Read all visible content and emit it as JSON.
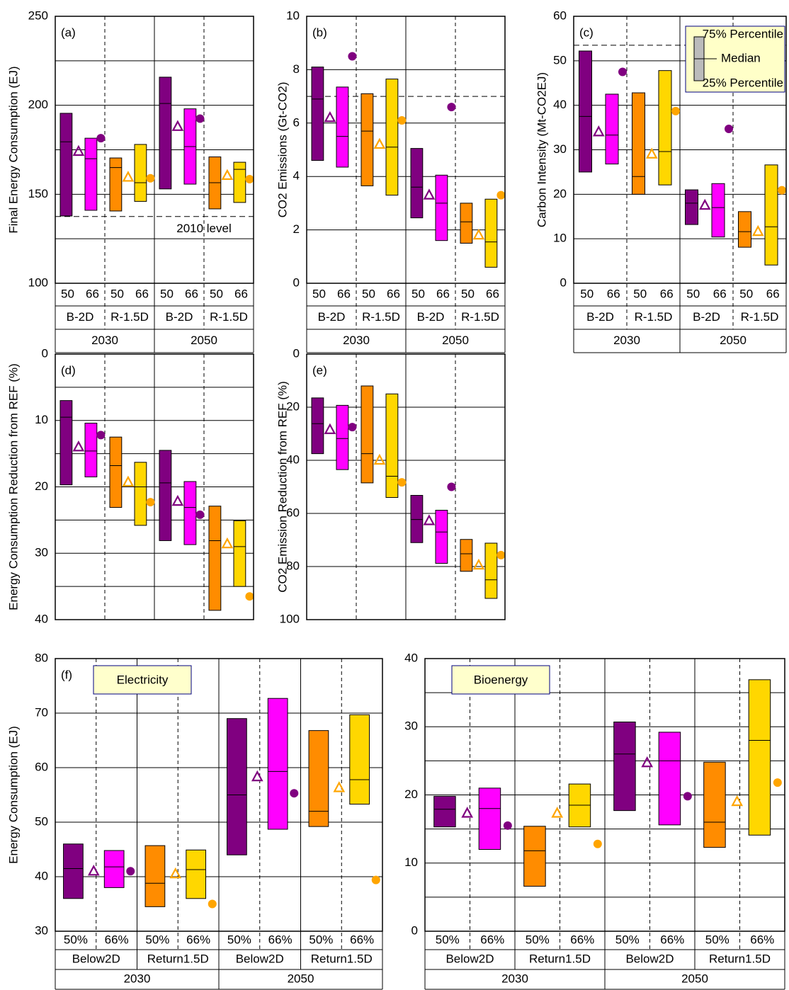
{
  "chart_data": [
    {
      "type": "box",
      "label": "(a)",
      "ylabel": "Final Energy Consumption (EJ)",
      "ylim": [
        100,
        250
      ],
      "yticks": [
        100,
        150,
        200,
        250
      ],
      "ygrid": [
        125,
        175,
        225
      ],
      "grid": true,
      "dashed_between": "scenarios",
      "size_labels": [
        "50",
        "66"
      ],
      "scenarios": [
        "B-2D",
        "R-1.5D"
      ],
      "periods": [
        "2030",
        "2050"
      ],
      "series": [
        {
          "color": "#800080",
          "median_color": "#ffa500",
          "q1": [
            137.8,
            153
          ],
          "median": [
            179.5,
            201
          ],
          "q3": [
            195.5,
            215.8
          ]
        },
        {
          "color": "#ff00ff",
          "median_color": "#000000",
          "q1": [
            141,
            155.7
          ],
          "median": [
            170,
            176.8
          ],
          "q3": [
            181.5,
            198
          ]
        },
        {
          "color": "#ff8c00",
          "median_color": "#000000",
          "q1": [
            140.6,
            141.8
          ],
          "median": [
            165,
            156.5
          ],
          "q3": [
            170.4,
            171
          ]
        },
        {
          "color": "#ffd700",
          "median_color": "#000000",
          "q1": [
            146,
            145.4
          ],
          "median": [
            156.5,
            164
          ],
          "q3": [
            178,
            168
          ]
        }
      ],
      "triangles": [
        {
          "color": "#800080",
          "values": [
            174,
            188
          ]
        },
        {
          "color": "#ffa500",
          "values": [
            159.5,
            160.5
          ]
        }
      ],
      "circles": [
        {
          "color": "#800080",
          "values": [
            181.5,
            192.5
          ]
        },
        {
          "color": "#ffa500",
          "values": [
            159,
            158.5
          ]
        }
      ],
      "reference": {
        "value": 137.5,
        "label": "2010 level",
        "color": "#cc0000"
      }
    },
    {
      "type": "box",
      "label": "(b)",
      "ylabel": "CO2 Emissions (Gt-CO2)",
      "ylim": [
        0,
        10
      ],
      "yticks": [
        0,
        2,
        4,
        6,
        8,
        10
      ],
      "grid": true,
      "dashed_between": "scenarios",
      "size_labels": [
        "50",
        "66"
      ],
      "scenarios": [
        "B-2D",
        "R-1.5D"
      ],
      "periods": [
        "2030",
        "2050"
      ],
      "series": [
        {
          "color": "#800080",
          "median_color": "#ffa500",
          "q1": [
            4.6,
            2.45
          ],
          "median": [
            6.9,
            3.6
          ],
          "q3": [
            8.1,
            5.05
          ]
        },
        {
          "color": "#ff00ff",
          "median_color": "#000000",
          "q1": [
            4.35,
            1.6
          ],
          "median": [
            5.5,
            3.0
          ],
          "q3": [
            7.35,
            4.05
          ]
        },
        {
          "color": "#ff8c00",
          "median_color": "#000000",
          "q1": [
            3.65,
            1.5
          ],
          "median": [
            5.7,
            2.3
          ],
          "q3": [
            7.1,
            3.0
          ]
        },
        {
          "color": "#ffd700",
          "median_color": "#000000",
          "q1": [
            3.3,
            0.6
          ],
          "median": [
            5.1,
            1.55
          ],
          "q3": [
            7.65,
            3.15
          ]
        }
      ],
      "triangles": [
        {
          "color": "#800080",
          "values": [
            6.2,
            3.3
          ]
        },
        {
          "color": "#ffa500",
          "values": [
            5.2,
            1.8
          ]
        }
      ],
      "circles": [
        {
          "color": "#800080",
          "values": [
            8.5,
            6.6
          ]
        },
        {
          "color": "#ffa500",
          "values": [
            6.1,
            3.3
          ]
        }
      ],
      "reference": {
        "value": 7,
        "color": "#cc0000"
      }
    },
    {
      "type": "box",
      "label": "(c)",
      "ylabel": "Carbon Intensity (Mt-CO2EJ)",
      "ylim": [
        0,
        60
      ],
      "yticks": [
        0,
        10,
        20,
        30,
        40,
        50,
        60
      ],
      "grid": true,
      "dashed_between": "scenarios",
      "size_labels": [
        "50",
        "66"
      ],
      "scenarios": [
        "B-2D",
        "R-1.5D"
      ],
      "periods": [
        "2030",
        "2050"
      ],
      "series": [
        {
          "color": "#800080",
          "median_color": "#ffa500",
          "q1": [
            25,
            13.2
          ],
          "median": [
            37.5,
            18
          ],
          "q3": [
            52.2,
            21
          ]
        },
        {
          "color": "#ff00ff",
          "median_color": "#000000",
          "q1": [
            26.8,
            10.4
          ],
          "median": [
            33.3,
            17
          ],
          "q3": [
            42.5,
            22.4
          ]
        },
        {
          "color": "#ff8c00",
          "median_color": "#000000",
          "q1": [
            20,
            8.1
          ],
          "median": [
            24,
            11.6
          ],
          "q3": [
            42.8,
            16.1
          ]
        },
        {
          "color": "#ffd700",
          "median_color": "#000000",
          "q1": [
            22.1,
            4.1
          ],
          "median": [
            29.6,
            12.7
          ],
          "q3": [
            47.8,
            26.6
          ]
        }
      ],
      "triangles": [
        {
          "color": "#800080",
          "values": [
            34,
            17.5
          ]
        },
        {
          "color": "#ffa500",
          "values": [
            29,
            11.6
          ]
        }
      ],
      "circles": [
        {
          "color": "#800080",
          "values": [
            47.5,
            34.7
          ]
        },
        {
          "color": "#ffa500",
          "values": [
            38.7,
            20.9
          ]
        }
      ],
      "reference": {
        "value": 53.5,
        "color": "#cc0000"
      },
      "legend": {
        "upper": "75% Percentile",
        "middle": "Median",
        "lower": "25% Percentile"
      }
    },
    {
      "type": "box",
      "label": "(d)",
      "ylabel": "Energy Consumption Reduction from REF (%)",
      "ylim": [
        0,
        40
      ],
      "y_inverted": true,
      "yticks": [
        0,
        10,
        20,
        30,
        40
      ],
      "ygrid": [
        5,
        15,
        25,
        35
      ],
      "grid": true,
      "dashed_between": "scenarios",
      "series": [
        {
          "color": "#800080",
          "median_color": "#ffa500",
          "q1": [
            7,
            14.5
          ],
          "median": [
            9.5,
            19.4
          ],
          "q3": [
            19.7,
            28.1
          ]
        },
        {
          "color": "#ff00ff",
          "median_color": "#000000",
          "q1": [
            10.4,
            19.2
          ],
          "median": [
            14.6,
            23.1
          ],
          "q3": [
            18.5,
            28.7
          ]
        },
        {
          "color": "#ff8c00",
          "median_color": "#000000",
          "q1": [
            12.5,
            22.9
          ],
          "median": [
            16.8,
            28.1
          ],
          "q3": [
            23.1,
            38.6
          ]
        },
        {
          "color": "#ffd700",
          "median_color": "#000000",
          "q1": [
            16.3,
            25.1
          ],
          "median": [
            20,
            29
          ],
          "q3": [
            25.8,
            35
          ]
        }
      ],
      "triangles": [
        {
          "color": "#800080",
          "values": [
            14,
            22.2
          ]
        },
        {
          "color": "#ffa500",
          "values": [
            19.3,
            28.6
          ]
        }
      ],
      "circles": [
        {
          "color": "#800080",
          "values": [
            12.2,
            24.2
          ]
        },
        {
          "color": "#ffa500",
          "values": [
            22.3,
            36.5
          ]
        }
      ]
    },
    {
      "type": "box",
      "label": "(e)",
      "ylabel": "CO2 Emission Reduction from REF (%)",
      "ylim": [
        0,
        100
      ],
      "y_inverted": true,
      "yticks": [
        0,
        20,
        40,
        60,
        80,
        100
      ],
      "grid": true,
      "dashed_between": "scenarios",
      "series": [
        {
          "color": "#800080",
          "median_color": "#ffa500",
          "q1": [
            16.5,
            53.2
          ],
          "median": [
            26.2,
            62.3
          ],
          "q3": [
            37.5,
            71
          ]
        },
        {
          "color": "#ff00ff",
          "median_color": "#000000",
          "q1": [
            19.3,
            58.8
          ],
          "median": [
            31.8,
            67
          ],
          "q3": [
            43.5,
            78.8
          ]
        },
        {
          "color": "#ff8c00",
          "median_color": "#000000",
          "q1": [
            12,
            69.8
          ],
          "median": [
            37.5,
            75.2
          ],
          "q3": [
            48.5,
            81.8
          ]
        },
        {
          "color": "#ffd700",
          "median_color": "#000000",
          "q1": [
            15,
            71.2
          ],
          "median": [
            46,
            85
          ],
          "q3": [
            54,
            92
          ]
        }
      ],
      "triangles": [
        {
          "color": "#800080",
          "values": [
            28.5,
            62.8
          ]
        },
        {
          "color": "#ffa500",
          "values": [
            40,
            79.5
          ]
        }
      ],
      "circles": [
        {
          "color": "#800080",
          "values": [
            27.5,
            50
          ]
        },
        {
          "color": "#ffa500",
          "values": [
            48.3,
            75.7
          ]
        }
      ]
    },
    {
      "type": "box",
      "label": "(f)",
      "title": "Electricity",
      "ylabel": "Energy Consumption (EJ)",
      "ylim": [
        30,
        80
      ],
      "yticks": [
        30,
        40,
        50,
        60,
        70,
        80
      ],
      "grid": true,
      "dashed_between": "sizes",
      "size_labels": [
        "50%",
        "66%"
      ],
      "scenarios": [
        "Below2D",
        "Return1.5D"
      ],
      "periods": [
        "2030",
        "2050"
      ],
      "series": [
        {
          "color": "#800080",
          "median_color": "#ffa500",
          "q1": [
            36,
            44
          ],
          "median": [
            41.5,
            55
          ],
          "q3": [
            46,
            69
          ]
        },
        {
          "color": "#ff00ff",
          "median_color": "#000000",
          "q1": [
            38,
            48.7
          ],
          "median": [
            41.8,
            59.3
          ],
          "q3": [
            44.8,
            72.7
          ]
        },
        {
          "color": "#ff8c00",
          "median_color": "#000000",
          "q1": [
            34.5,
            49.2
          ],
          "median": [
            38.8,
            52
          ],
          "q3": [
            45.7,
            66.8
          ]
        },
        {
          "color": "#ffd700",
          "median_color": "#000000",
          "q1": [
            36,
            53.3
          ],
          "median": [
            41.3,
            57.8
          ],
          "q3": [
            44.9,
            69.7
          ]
        }
      ],
      "triangles": [
        {
          "color": "#800080",
          "values": [
            41,
            58.3
          ]
        },
        {
          "color": "#ffa500",
          "values": [
            40.5,
            56.3
          ]
        }
      ],
      "circles": [
        {
          "color": "#800080",
          "values": [
            41,
            55.3
          ]
        },
        {
          "color": "#ffa500",
          "values": [
            35,
            39.4
          ]
        }
      ]
    },
    {
      "type": "box",
      "title": "Bioenergy",
      "ylim": [
        0,
        40
      ],
      "yticks": [
        0,
        10,
        20,
        30,
        40
      ],
      "ygrid": [
        5,
        15,
        25,
        35
      ],
      "grid": true,
      "dashed_between": "sizes",
      "size_labels": [
        "50%",
        "66%"
      ],
      "scenarios": [
        "Below2D",
        "Return1.5D"
      ],
      "periods": [
        "2030",
        "2050"
      ],
      "series": [
        {
          "color": "#800080",
          "median_color": "#ffa500",
          "q1": [
            15.3,
            17.7
          ],
          "median": [
            17.9,
            26
          ],
          "q3": [
            19.8,
            30.7
          ]
        },
        {
          "color": "#ff00ff",
          "median_color": "#000000",
          "q1": [
            12,
            15.6
          ],
          "median": [
            18,
            25
          ],
          "q3": [
            21,
            29.2
          ]
        },
        {
          "color": "#ff8c00",
          "median_color": "#000000",
          "q1": [
            6.6,
            12.3
          ],
          "median": [
            11.8,
            16
          ],
          "q3": [
            15.4,
            24.8
          ]
        },
        {
          "color": "#ffd700",
          "median_color": "#000000",
          "q1": [
            15.3,
            14.1
          ],
          "median": [
            18.5,
            28
          ],
          "q3": [
            21.6,
            36.9
          ]
        }
      ],
      "triangles": [
        {
          "color": "#800080",
          "values": [
            17.3,
            24.7
          ]
        },
        {
          "color": "#ffa500",
          "values": [
            17.3,
            19
          ]
        }
      ],
      "circles": [
        {
          "color": "#800080",
          "values": [
            15.5,
            19.8
          ]
        },
        {
          "color": "#ffa500",
          "values": [
            12.8,
            21.8
          ]
        }
      ]
    }
  ]
}
